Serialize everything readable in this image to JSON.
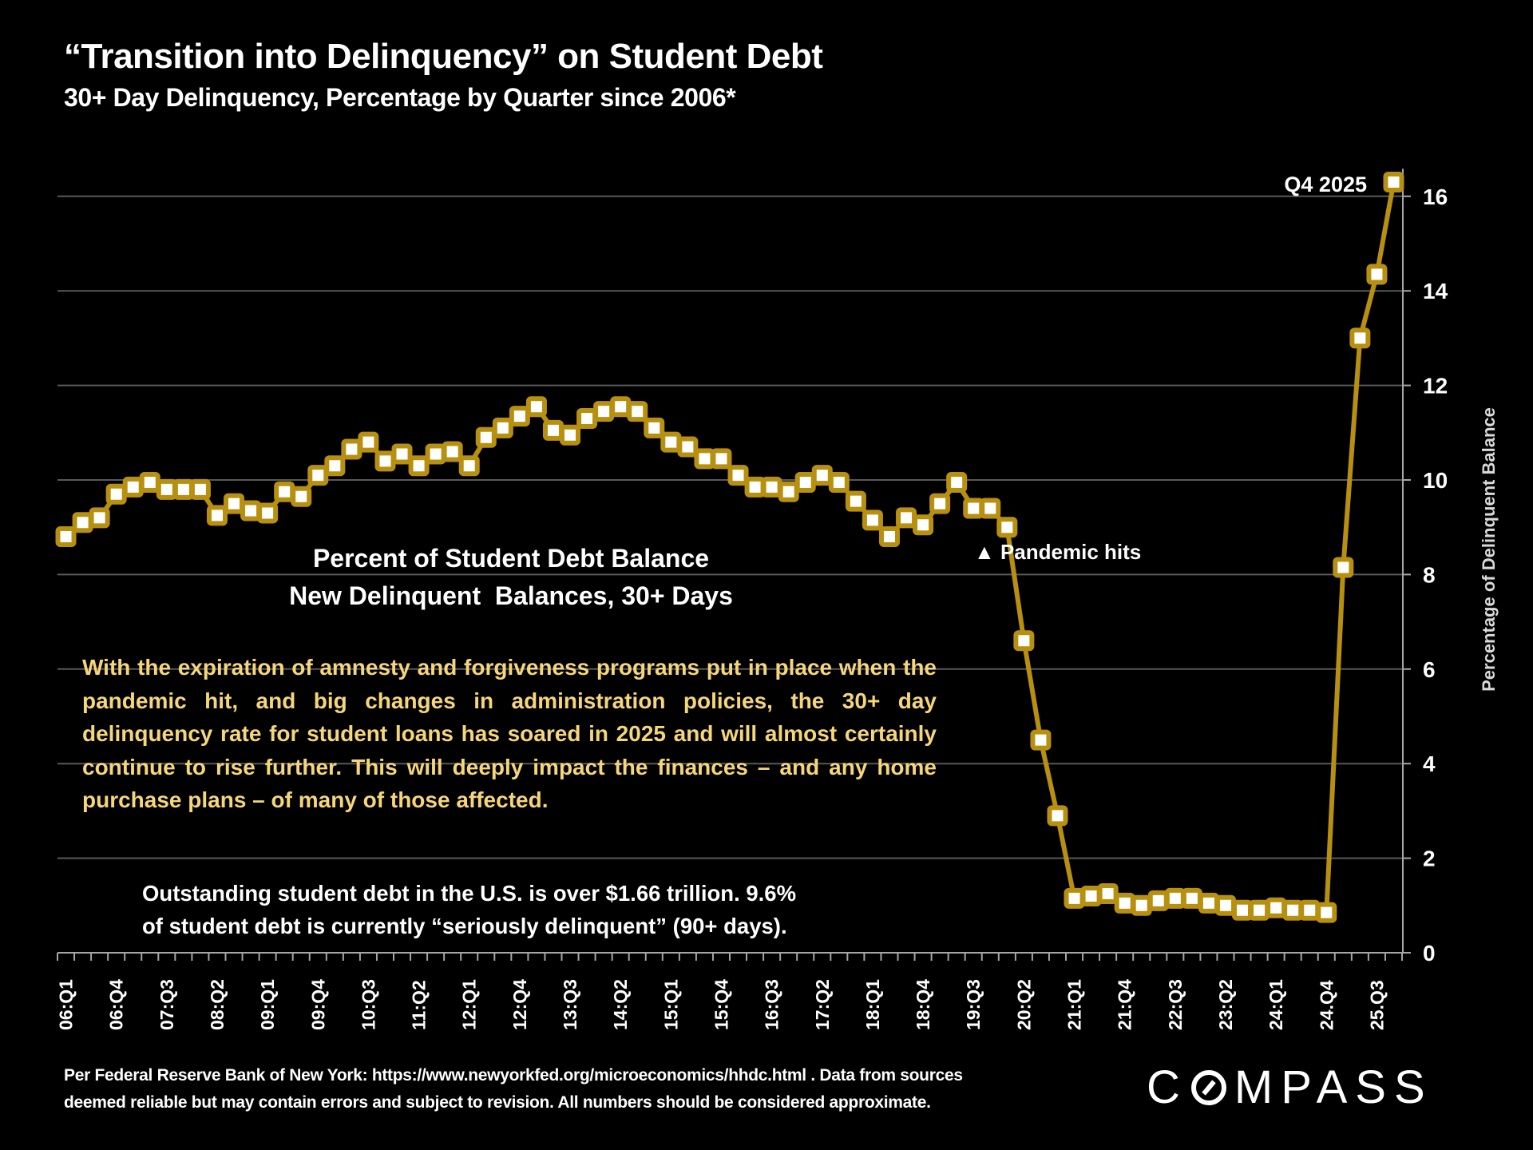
{
  "header": {
    "title": "“Transition into Delinquency” on Student Debt",
    "subtitle": "30+ Day Delinquency, Percentage by Quarter since 2006*"
  },
  "chart_data": {
    "type": "line",
    "title": "“Transition into Delinquency” on Student Debt",
    "subtitle": "30+ Day Delinquency, Percentage by Quarter since 2006*",
    "xlabel": "",
    "ylabel": "Percentage of Delinquent Balance",
    "ylim": [
      0,
      16.5
    ],
    "yticks": [
      0,
      2,
      4,
      6,
      8,
      10,
      12,
      14,
      16
    ],
    "y_axis_side": "right",
    "grid": true,
    "legend": "none",
    "x": [
      "06:Q1",
      "06:Q2",
      "06:Q3",
      "06:Q4",
      "07:Q1",
      "07:Q2",
      "07:Q3",
      "07:Q4",
      "08:Q1",
      "08:Q2",
      "08:Q3",
      "08:Q4",
      "09:Q1",
      "09:Q2",
      "09:Q3",
      "09:Q4",
      "10:Q1",
      "10:Q2",
      "10:Q3",
      "10:Q4",
      "11:Q1",
      "11:Q2",
      "11:Q3",
      "11:Q4",
      "12:Q1",
      "12:Q2",
      "12:Q3",
      "12:Q4",
      "13:Q1",
      "13:Q2",
      "13:Q3",
      "13:Q4",
      "14:Q1",
      "14:Q2",
      "14:Q3",
      "14:Q4",
      "15:Q1",
      "15:Q2",
      "15:Q3",
      "15:Q4",
      "16:Q1",
      "16:Q2",
      "16:Q3",
      "16:Q4",
      "17:Q1",
      "17:Q2",
      "17:Q3",
      "17:Q4",
      "18:Q1",
      "18:Q2",
      "18:Q3",
      "18:Q4",
      "19:Q1",
      "19:Q2",
      "19:Q3",
      "19:Q4",
      "20:Q1",
      "20:Q2",
      "20:Q3",
      "20:Q4",
      "21:Q1",
      "21:Q2",
      "21:Q3",
      "21:Q4",
      "22:Q1",
      "22:Q2",
      "22:Q3",
      "22:Q4",
      "23:Q1",
      "23:Q2",
      "23:Q3",
      "23:Q4",
      "24:Q1",
      "24:Q2",
      "24:Q3",
      "24:Q4",
      "25:Q1",
      "25:Q2",
      "25:Q3",
      "25:Q4"
    ],
    "tick_labels": [
      "06:Q1",
      "06:Q4",
      "07:Q3",
      "08:Q2",
      "09:Q1",
      "09:Q4",
      "10:Q3",
      "11:Q2",
      "12:Q1",
      "12:Q4",
      "13:Q3",
      "14:Q2",
      "15:Q1",
      "15:Q4",
      "16:Q3",
      "17:Q2",
      "18:Q1",
      "18:Q4",
      "19:Q3",
      "20:Q2",
      "21:Q1",
      "21:Q4",
      "22:Q3",
      "23:Q2",
      "24:Q1",
      "24.Q4",
      "25.Q3"
    ],
    "tick_every": 3,
    "series": [
      {
        "name": "Percent of Student Debt Balance - New Delinquent Balances, 30+ Days",
        "color": "#b8900f",
        "marker_fill": "#ffffff",
        "values": [
          8.8,
          9.1,
          9.2,
          9.7,
          9.85,
          9.95,
          9.8,
          9.8,
          9.8,
          9.25,
          9.5,
          9.35,
          9.3,
          9.75,
          9.65,
          10.1,
          10.3,
          10.65,
          10.8,
          10.4,
          10.55,
          10.3,
          10.55,
          10.6,
          10.3,
          10.9,
          11.1,
          11.35,
          11.55,
          11.05,
          10.95,
          11.3,
          11.45,
          11.55,
          11.45,
          11.1,
          10.8,
          10.7,
          10.45,
          10.45,
          10.1,
          9.85,
          9.85,
          9.75,
          9.95,
          10.1,
          9.95,
          9.55,
          9.15,
          8.8,
          9.2,
          9.05,
          9.5,
          9.95,
          9.4,
          9.4,
          9.0,
          6.6,
          4.5,
          2.9,
          1.15,
          1.2,
          1.25,
          1.05,
          1.0,
          1.1,
          1.15,
          1.15,
          1.05,
          1.0,
          0.9,
          0.9,
          0.95,
          0.9,
          0.9,
          0.85,
          8.15,
          13.0,
          14.35,
          16.3
        ]
      }
    ],
    "annotations": [
      {
        "text": "Q4 2025",
        "at": "25:Q4"
      },
      {
        "text": "▲ Pandemic hits",
        "at": "19:Q4"
      }
    ]
  },
  "chart_text": {
    "series_label_line1": "Percent of Student Debt Balance",
    "series_label_line2": "New Delinquent  Balances, 30+ Days",
    "commentary": "With the expiration of amnesty and forgiveness programs put in place when the pandemic hit, and big changes in administration policies, the 30+ day delinquency rate for student loans has soared in 2025 and will almost certainly continue to rise further. This will deeply impact the finances – and any home purchase plans – of many of those affected.",
    "debt_note_line1": "Outstanding student debt in the U.S. is over $1.66 trillion. 9.6%",
    "debt_note_line2": "of student debt is currently “seriously delinquent” (90+ days)."
  },
  "footer": {
    "source_line1": "Per Federal Reserve Bank of New York: https://www.newyorkfed.org/microeconomics/hhdc.html . Data from sources",
    "source_line2": "deemed reliable but may contain errors and subject to revision. All numbers should be considered approximate.",
    "logo_pre": "C",
    "logo_post": "MPASS"
  },
  "colors": {
    "background": "#000000",
    "line": "#b8900f",
    "commentary_text": "#f5d67a",
    "grid": "#595959",
    "axis": "#a6a6a6"
  }
}
